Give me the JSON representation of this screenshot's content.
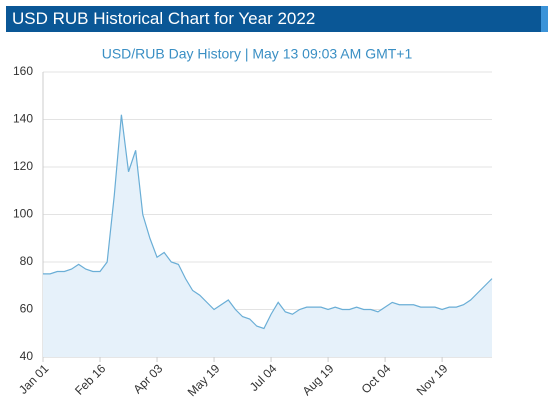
{
  "header": {
    "title": "USD RUB Historical Chart for Year 2022"
  },
  "chart_data": {
    "type": "area",
    "subtitle": "USD/RUB  Day History | May 13 09:03 AM GMT+1",
    "categories": [
      "Jan 01",
      null,
      null,
      null,
      null,
      null,
      null,
      null,
      "Feb 16",
      null,
      null,
      null,
      null,
      null,
      null,
      null,
      "Apr 03",
      null,
      null,
      null,
      null,
      null,
      null,
      null,
      "May 19",
      null,
      null,
      null,
      null,
      null,
      null,
      null,
      "Jul 04",
      null,
      null,
      null,
      null,
      null,
      null,
      null,
      "Aug 19",
      null,
      null,
      null,
      null,
      null,
      null,
      null,
      "Oct 04",
      null,
      null,
      null,
      null,
      null,
      null,
      null,
      "Nov 19",
      null,
      null,
      null,
      null,
      null,
      null,
      null
    ],
    "values": [
      75,
      75,
      76,
      76,
      77,
      79,
      77,
      76,
      76,
      80,
      108,
      142,
      118,
      127,
      100,
      90,
      82,
      84,
      80,
      79,
      73,
      68,
      66,
      63,
      60,
      62,
      64,
      60,
      57,
      56,
      53,
      52,
      58,
      63,
      59,
      58,
      60,
      61,
      61,
      61,
      60,
      61,
      60,
      60,
      61,
      60,
      60,
      59,
      61,
      63,
      62,
      62,
      62,
      61,
      61,
      61,
      60,
      61,
      61,
      62,
      64,
      67,
      70,
      73
    ],
    "color": "#6aaed6",
    "ylim": [
      40,
      160
    ],
    "yticks": [
      40,
      60,
      80,
      100,
      120,
      140,
      160
    ],
    "grid": true
  }
}
